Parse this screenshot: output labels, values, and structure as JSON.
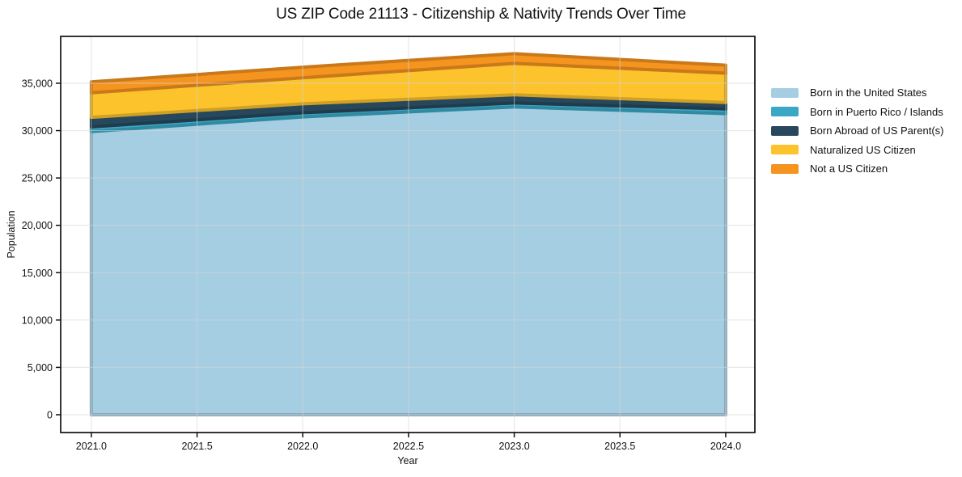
{
  "title": "US ZIP Code 21113 - Citizenship & Nativity Trends Over Time",
  "chart_data": {
    "type": "area",
    "stacked": true,
    "title": "US ZIP Code 21113 - Citizenship & Nativity Trends Over Time",
    "xlabel": "Year",
    "ylabel": "Population",
    "x": [
      2021,
      2022,
      2023,
      2024
    ],
    "series": [
      {
        "name": "Born in the United States",
        "color": "#a6cee3",
        "values": [
          29900,
          31450,
          32500,
          31800
        ]
      },
      {
        "name": "Born in Puerto Rico / Islands",
        "color": "#3aa8c4",
        "values": [
          500,
          430,
          420,
          490
        ]
      },
      {
        "name": "Born Abroad of US Parent(s)",
        "color": "#27485c",
        "values": [
          1000,
          950,
          860,
          680
        ]
      },
      {
        "name": "Naturalized US Citizen",
        "color": "#fcc32d",
        "values": [
          2600,
          2750,
          3320,
          3100
        ]
      },
      {
        "name": "Not a US Citizen",
        "color": "#f5941f",
        "values": [
          1150,
          1120,
          1030,
          840
        ]
      }
    ],
    "stack_totals": [
      35150,
      36700,
      38130,
      36910
    ],
    "xticks": [
      "2021.0",
      "2021.5",
      "2022.0",
      "2022.5",
      "2023.0",
      "2023.5",
      "2024.0"
    ],
    "xtick_values": [
      2021,
      2021.5,
      2022,
      2022.5,
      2023,
      2023.5,
      2024
    ],
    "yticks": [
      "0",
      "5,000",
      "10,000",
      "15,000",
      "20,000",
      "25,000",
      "30,000",
      "35,000"
    ],
    "ytick_values": [
      0,
      5000,
      10000,
      15000,
      20000,
      25000,
      30000,
      35000
    ],
    "xlim": [
      2020.855,
      2024.138
    ],
    "ylim": [
      -1880,
      39950
    ],
    "grid": true,
    "gridline_color": "#d5d5d5",
    "frame_color": "#111111",
    "tick_label_color": "#111111",
    "legend_position": "right-outside"
  }
}
